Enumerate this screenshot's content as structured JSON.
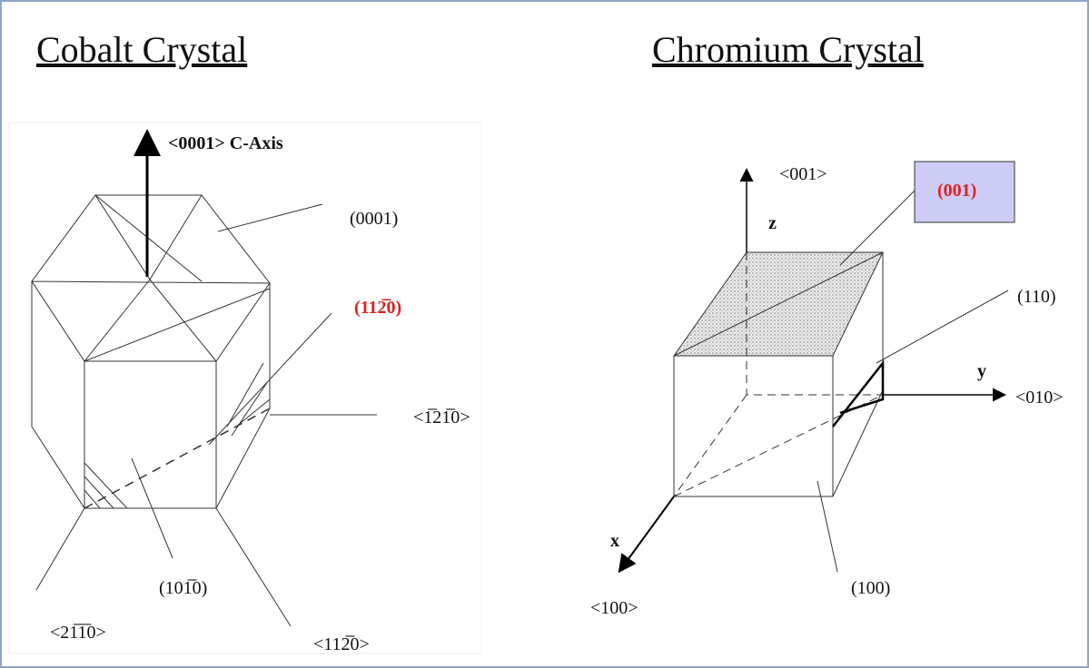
{
  "cobalt": {
    "title": "Cobalt Crystal",
    "axis_label": "<0001>  C-Axis",
    "plane_0001": "(0001)",
    "plane_1120": "(112̅0)",
    "dir_1210": "<1̅21̅0>",
    "plane_1010": "(101̅0)",
    "dir_2110": "<21̅1̅0>",
    "dir_1120": "<112̅0>"
  },
  "chromium": {
    "title": "Chromium Crystal",
    "dir_001": "<001>",
    "z": "z",
    "plane_001": "(001)",
    "plane_110": "(110)",
    "y": "y",
    "dir_010": "<010>",
    "x": "x",
    "dir_100": "<100>",
    "plane_100": "(100)"
  }
}
